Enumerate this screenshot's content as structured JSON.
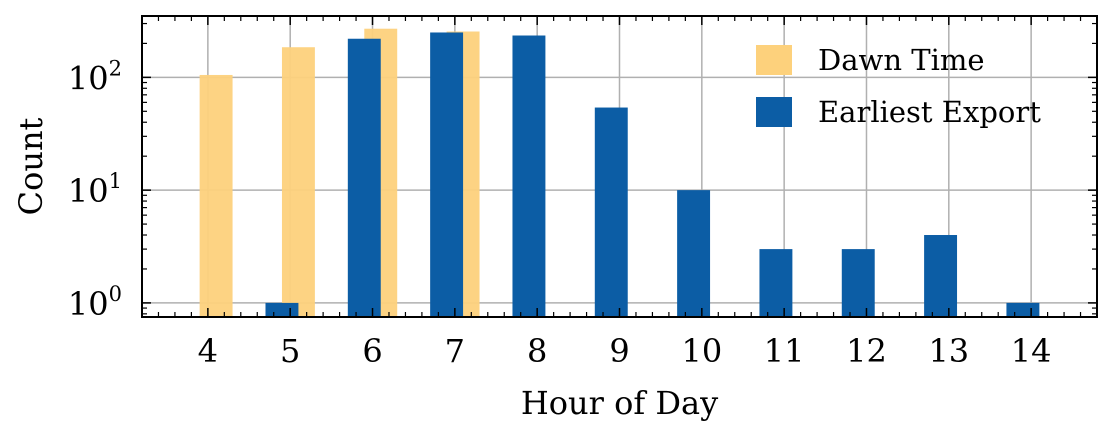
{
  "chart_data": {
    "type": "bar",
    "title": "",
    "xlabel": "Hour of Day",
    "ylabel": "Count",
    "yscale": "log",
    "ylim": [
      0.75,
      350
    ],
    "xlim": [
      3.2,
      14.8
    ],
    "y_ticks": [
      {
        "value": 1,
        "base": "10",
        "exp": "0"
      },
      {
        "value": 10,
        "base": "10",
        "exp": "1"
      },
      {
        "value": 100,
        "base": "10",
        "exp": "2"
      }
    ],
    "categories": [
      "4",
      "5",
      "6",
      "7",
      "8",
      "9",
      "10",
      "11",
      "12",
      "13",
      "14"
    ],
    "grid": true,
    "legend_position": "top-right",
    "series": [
      {
        "name": "Dawn Time",
        "color": "#FDD17C",
        "x": [
          4,
          5,
          6,
          7
        ],
        "values": [
          105,
          185,
          270,
          255
        ]
      },
      {
        "name": "Earliest Export",
        "color": "#0C5DA5",
        "x": [
          5,
          6,
          7,
          8,
          9,
          10,
          11,
          12,
          13,
          14
        ],
        "values": [
          1,
          220,
          250,
          235,
          54,
          10,
          3,
          3,
          4,
          1
        ]
      }
    ]
  }
}
